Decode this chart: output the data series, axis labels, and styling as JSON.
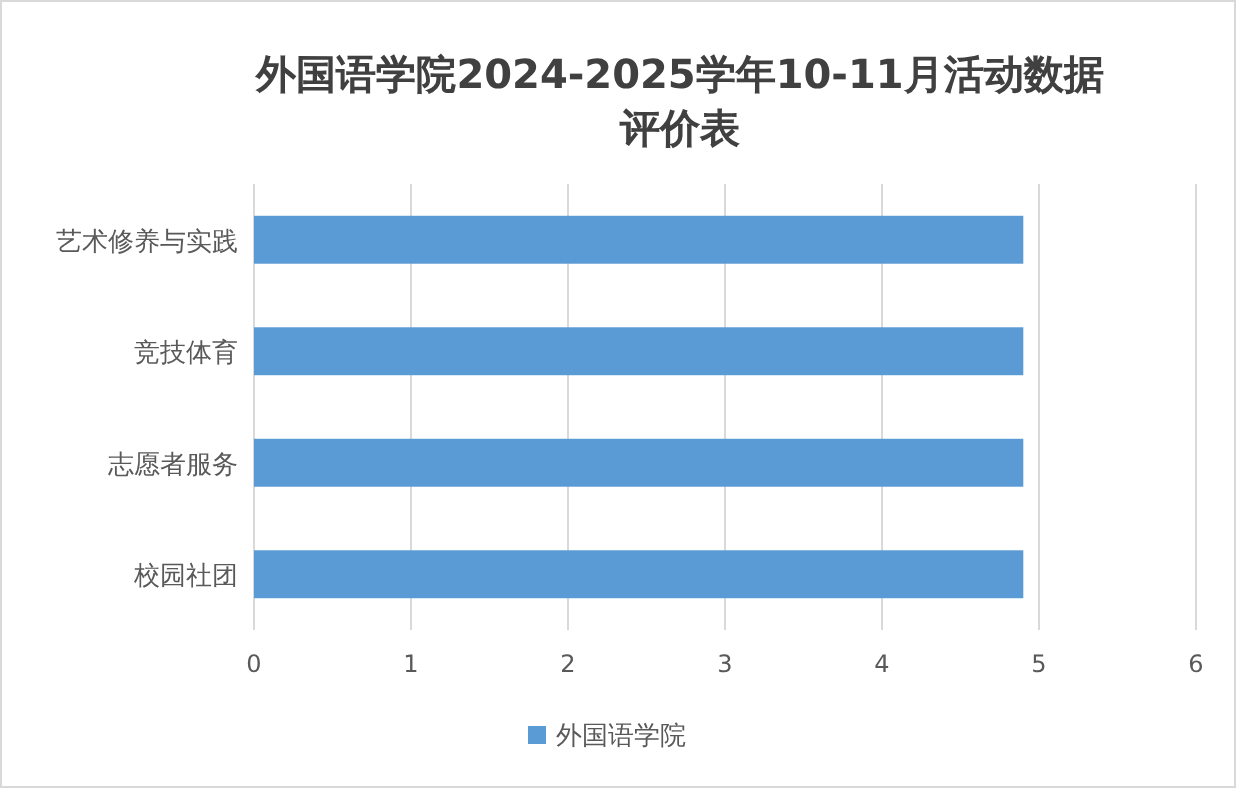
{
  "chart_data": {
    "type": "bar",
    "orientation": "horizontal",
    "title": "外国语学院2024-2025学年10-11月活动数据评价表",
    "categories": [
      "艺术修养与实践",
      "竞技体育",
      "志愿者服务",
      "校园社团"
    ],
    "series": [
      {
        "name": "外国语学院",
        "color": "#5b9bd5",
        "values": [
          4.9,
          4.9,
          4.9,
          4.9
        ]
      }
    ],
    "xlim": [
      0,
      6
    ],
    "xticks": [
      0,
      1,
      2,
      3,
      4,
      5,
      6
    ],
    "grid": "x",
    "legend": "bottom"
  }
}
